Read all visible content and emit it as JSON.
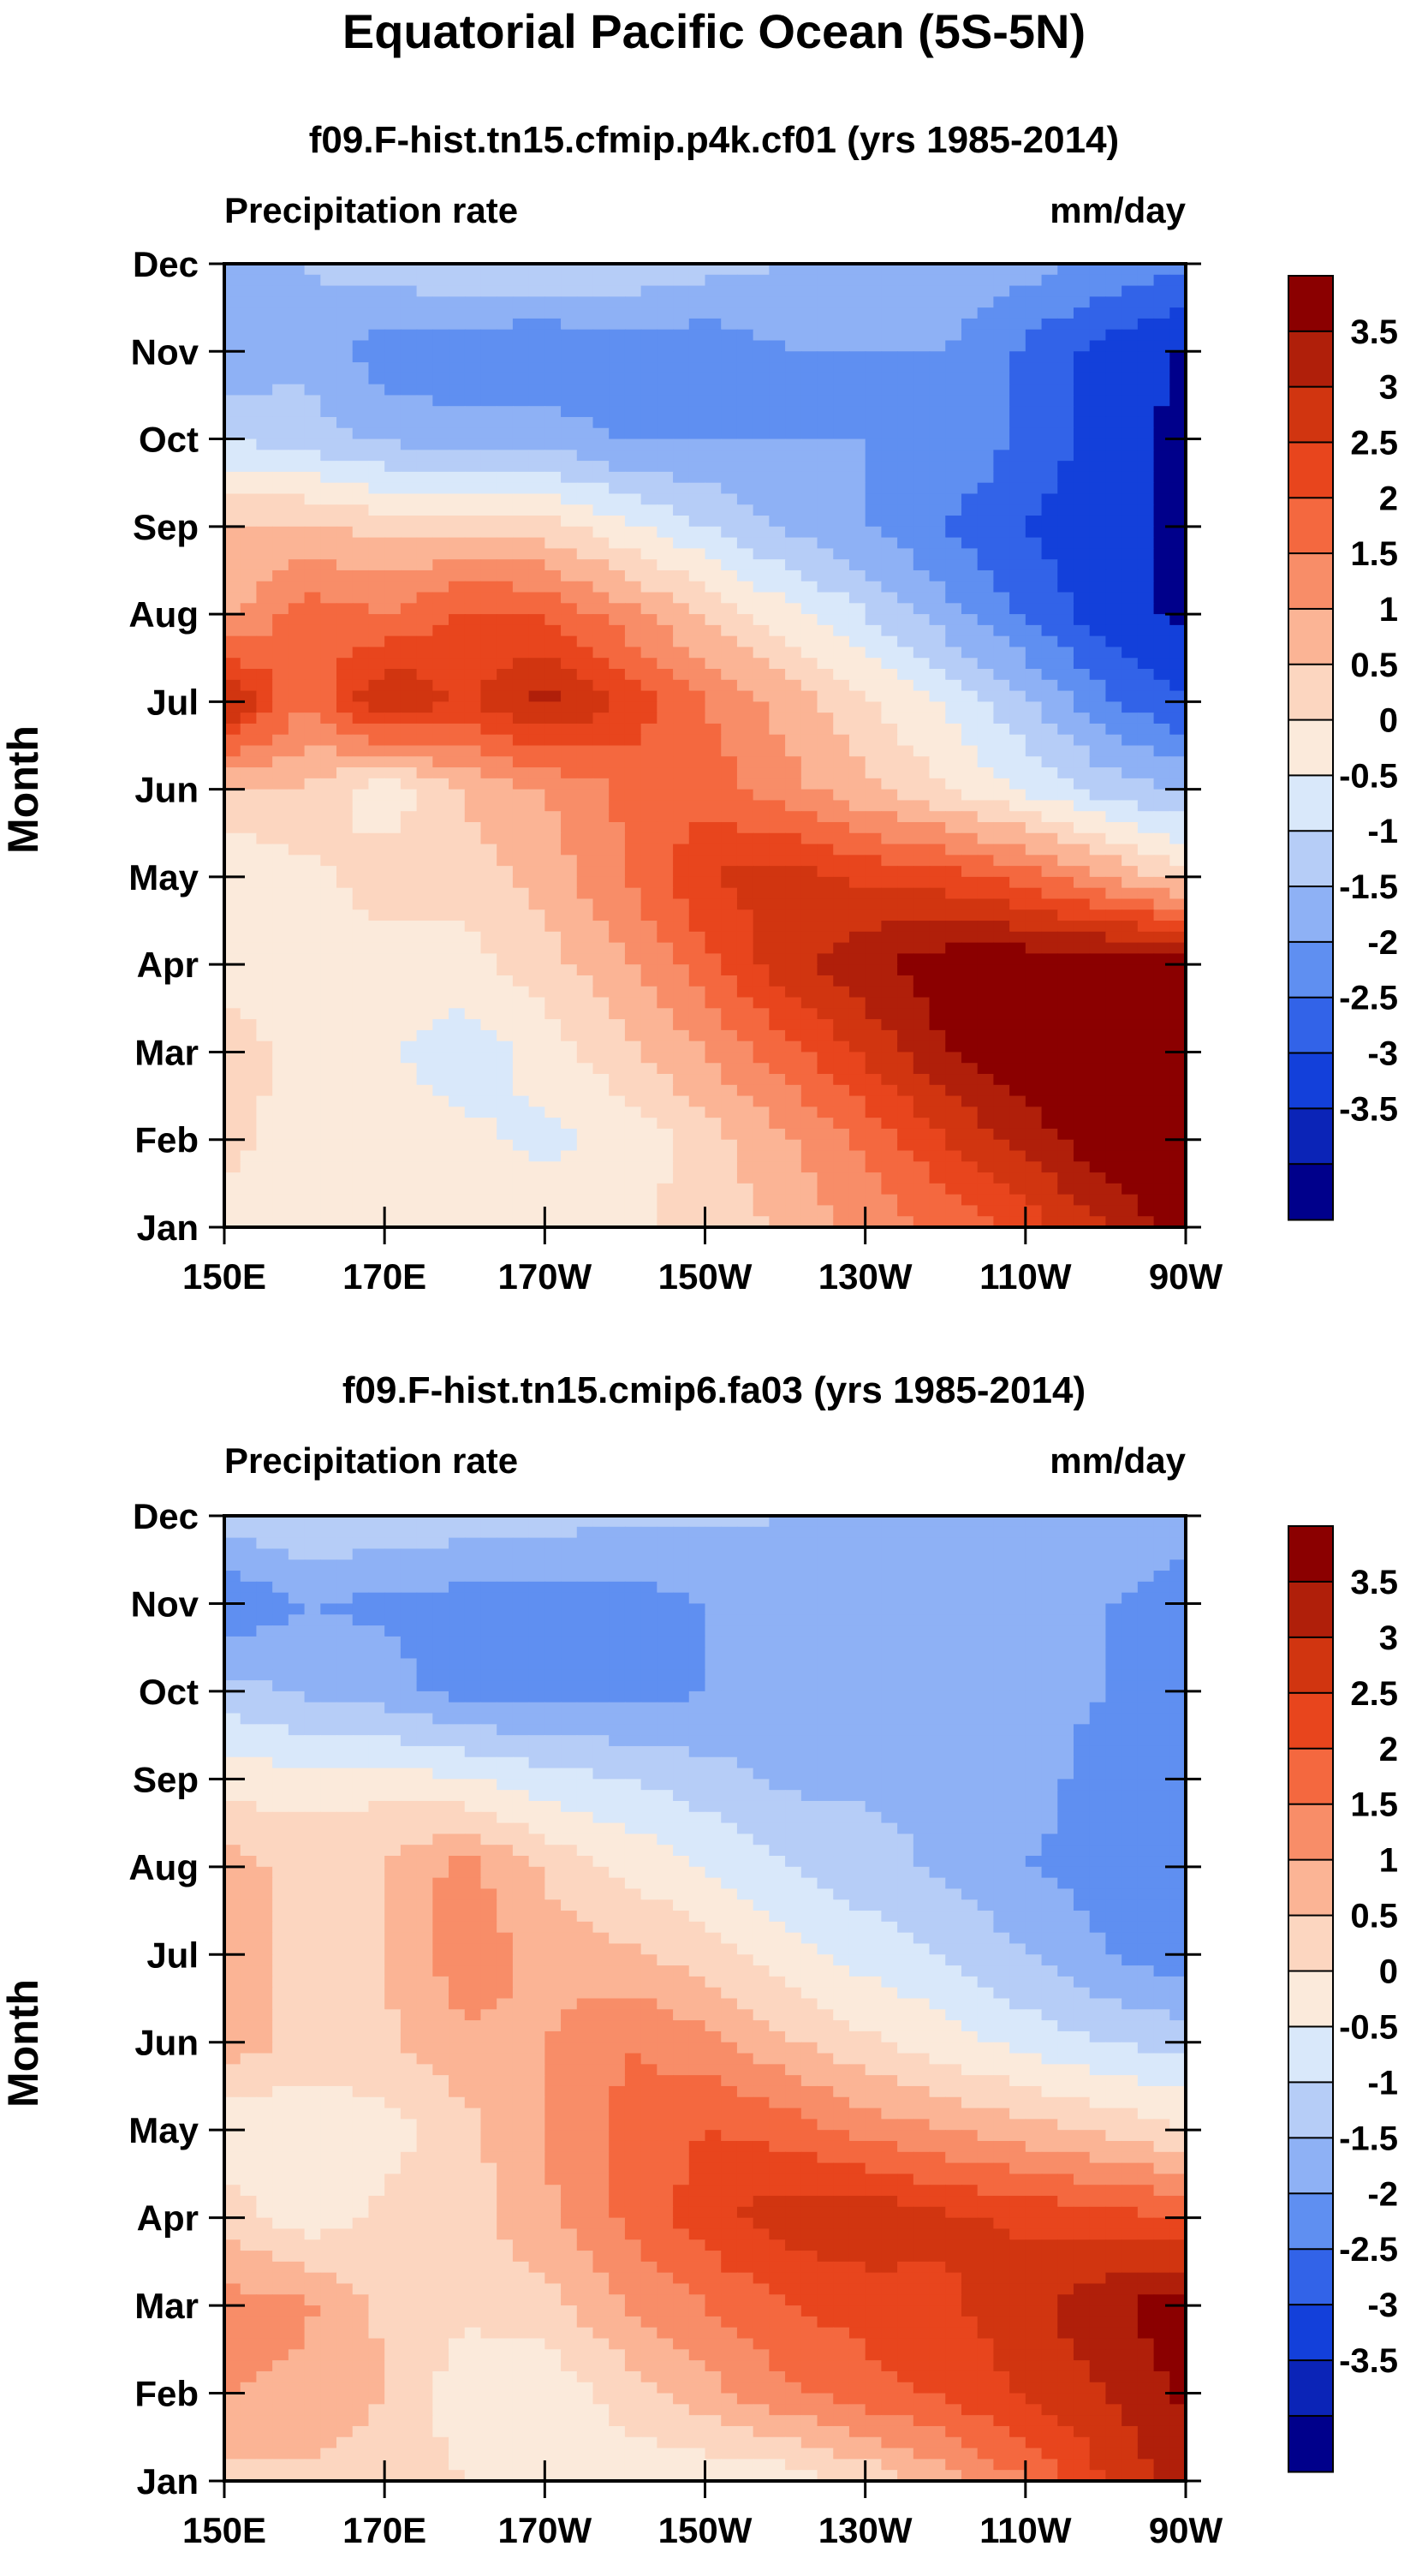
{
  "figure": {
    "title": "Equatorial Pacific Ocean (5S-5N)"
  },
  "chart_data": [
    {
      "type": "heatmap",
      "title": "f09.F-hist.tn15.cfmip.p4k.cf01 (yrs 1985-2014)",
      "variable_label": "Precipitation rate",
      "units_label": "mm/day",
      "ylabel": "Month",
      "xlabel": "",
      "x_ticks": [
        "150E",
        "170E",
        "170W",
        "150W",
        "130W",
        "110W",
        "90W"
      ],
      "y_ticks": [
        "Jan",
        "Feb",
        "Mar",
        "Apr",
        "May",
        "Jun",
        "Jul",
        "Aug",
        "Sep",
        "Oct",
        "Nov",
        "Dec"
      ],
      "colorbar_labels": [
        "3.5",
        "3",
        "2.5",
        "2",
        "1.5",
        "1",
        "0.5",
        "0",
        "-0.5",
        "-1",
        "-1.5",
        "-2",
        "-2.5",
        "-3",
        "-3.5"
      ],
      "colorbar_colors": [
        "#8b0000",
        "#b01f0a",
        "#d13510",
        "#e8451d",
        "#f4683f",
        "#f88d68",
        "#fbb495",
        "#fcd6c0",
        "#fbeadb",
        "#d9e8fa",
        "#b6cdf7",
        "#8eb1f5",
        "#5f8ff1",
        "#3263e8",
        "#1340da",
        "#0b24b7",
        "#00008b"
      ],
      "x_lon": [
        150,
        160,
        170,
        180,
        190,
        200,
        210,
        220,
        230,
        240,
        250,
        260,
        270
      ],
      "months": [
        "Jan",
        "Feb",
        "Mar",
        "Apr",
        "May",
        "Jun",
        "Jul",
        "Aug",
        "Sep",
        "Oct",
        "Nov",
        "Dec"
      ],
      "anomaly": [
        [
          -0.3,
          -0.2,
          -0.1,
          -0.2,
          -0.2,
          -0.1,
          0.2,
          0.6,
          1.2,
          1.6,
          2.2,
          3.0,
          3.9
        ],
        [
          0.2,
          -0.3,
          -0.2,
          -0.4,
          -0.6,
          -0.4,
          0.3,
          0.9,
          1.6,
          2.5,
          3.2,
          3.9,
          3.9
        ],
        [
          0.3,
          -0.2,
          -0.4,
          -0.8,
          -0.3,
          0.4,
          1.0,
          1.8,
          2.6,
          3.5,
          3.9,
          3.9,
          3.9
        ],
        [
          -0.2,
          -0.3,
          -0.3,
          -0.2,
          0.3,
          0.9,
          1.8,
          2.8,
          3.4,
          3.8,
          3.9,
          3.9,
          3.8
        ],
        [
          -0.4,
          -0.2,
          0.3,
          0.2,
          0.7,
          1.5,
          2.5,
          2.7,
          2.4,
          2.2,
          1.8,
          1.0,
          0.2
        ],
        [
          0.4,
          0.5,
          -0.4,
          0.6,
          1.0,
          1.6,
          1.8,
          1.2,
          0.6,
          0.0,
          -0.6,
          -1.2,
          -1.6
        ],
        [
          3.2,
          1.5,
          3.1,
          2.4,
          3.2,
          2.4,
          1.5,
          0.8,
          0.1,
          -0.6,
          -1.4,
          -2.4,
          -3.0
        ],
        [
          0.8,
          1.8,
          1.5,
          2.1,
          2.0,
          1.2,
          0.4,
          -0.3,
          -1.0,
          -1.8,
          -2.6,
          -3.3,
          -3.6
        ],
        [
          0.5,
          0.6,
          0.3,
          0.4,
          0.2,
          -0.4,
          -1.0,
          -1.6,
          -2.0,
          -2.5,
          -3.0,
          -3.4,
          -3.6
        ],
        [
          -1.0,
          -1.3,
          -1.6,
          -1.8,
          -1.7,
          -2.1,
          -2.0,
          -2.0,
          -2.0,
          -2.0,
          -2.6,
          -3.3,
          -3.6
        ],
        [
          -2.0,
          -1.6,
          -2.3,
          -2.4,
          -2.5,
          -2.2,
          -2.4,
          -2.0,
          -2.0,
          -2.0,
          -2.6,
          -3.2,
          -3.6
        ],
        [
          -1.8,
          -1.5,
          -1.2,
          -1.0,
          -1.0,
          -1.1,
          -1.3,
          -1.5,
          -1.6,
          -1.6,
          -1.8,
          -2.1,
          -2.4
        ]
      ]
    },
    {
      "type": "heatmap",
      "title": "f09.F-hist.tn15.cmip6.fa03 (yrs 1985-2014)",
      "variable_label": "Precipitation rate",
      "units_label": "mm/day",
      "ylabel": "Month",
      "xlabel": "",
      "x_ticks": [
        "150E",
        "170E",
        "170W",
        "150W",
        "130W",
        "110W",
        "90W"
      ],
      "y_ticks": [
        "Jan",
        "Feb",
        "Mar",
        "Apr",
        "May",
        "Jun",
        "Jul",
        "Aug",
        "Sep",
        "Oct",
        "Nov",
        "Dec"
      ],
      "colorbar_labels": [
        "3.5",
        "3",
        "2.5",
        "2",
        "1.5",
        "1",
        "0.5",
        "0",
        "-0.5",
        "-1",
        "-1.5",
        "-2",
        "-2.5",
        "-3",
        "-3.5"
      ],
      "colorbar_colors": [
        "#8b0000",
        "#b01f0a",
        "#d13510",
        "#e8451d",
        "#f4683f",
        "#f88d68",
        "#fbb495",
        "#fcd6c0",
        "#fbeadb",
        "#d9e8fa",
        "#b6cdf7",
        "#8eb1f5",
        "#5f8ff1",
        "#3263e8",
        "#1340da",
        "#0b24b7",
        "#00008b"
      ],
      "x_lon": [
        150,
        160,
        170,
        180,
        190,
        200,
        210,
        220,
        230,
        240,
        250,
        260,
        270
      ],
      "months": [
        "Jan",
        "Feb",
        "Mar",
        "Apr",
        "May",
        "Jun",
        "Jul",
        "Aug",
        "Sep",
        "Oct",
        "Nov",
        "Dec"
      ],
      "anomaly": [
        [
          0.3,
          0.4,
          0.2,
          0.0,
          -0.2,
          -0.3,
          -0.4,
          -0.3,
          0.1,
          0.8,
          1.5,
          2.5,
          3.3
        ],
        [
          1.0,
          0.9,
          0.5,
          -0.3,
          -0.4,
          0.2,
          0.8,
          1.4,
          1.8,
          2.1,
          2.6,
          3.0,
          3.6
        ],
        [
          1.2,
          1.1,
          0.4,
          0.1,
          0.3,
          1.0,
          1.5,
          2.0,
          2.2,
          2.4,
          2.8,
          3.4,
          3.8
        ],
        [
          0.3,
          -0.3,
          0.1,
          0.3,
          0.9,
          1.6,
          2.3,
          2.8,
          2.9,
          2.6,
          2.4,
          2.2,
          2.0
        ],
        [
          -0.5,
          -0.4,
          -0.2,
          0.3,
          1.0,
          1.6,
          2.0,
          1.8,
          1.3,
          1.0,
          0.7,
          0.4,
          0.0
        ],
        [
          0.9,
          0.3,
          0.4,
          0.9,
          1.0,
          1.5,
          1.2,
          0.6,
          0.1,
          -0.3,
          -0.7,
          -1.0,
          -1.2
        ],
        [
          0.8,
          0.3,
          0.5,
          1.3,
          0.8,
          0.6,
          0.2,
          -0.3,
          -0.7,
          -1.0,
          -1.5,
          -2.0,
          -2.3
        ],
        [
          0.7,
          0.4,
          0.5,
          1.2,
          0.4,
          -0.1,
          -0.5,
          -1.0,
          -1.3,
          -1.6,
          -2.0,
          -2.2,
          -2.5
        ],
        [
          -0.2,
          -0.3,
          -0.2,
          -0.5,
          -0.8,
          -1.0,
          -1.3,
          -1.6,
          -1.6,
          -1.6,
          -1.8,
          -2.2,
          -2.5
        ],
        [
          -1.3,
          -1.6,
          -1.8,
          -2.2,
          -2.2,
          -2.2,
          -2.0,
          -1.6,
          -1.6,
          -1.6,
          -1.8,
          -2.0,
          -2.2
        ],
        [
          -2.4,
          -2.0,
          -2.1,
          -2.2,
          -2.2,
          -2.2,
          -2.0,
          -1.7,
          -1.6,
          -1.6,
          -1.8,
          -2.0,
          -2.2
        ],
        [
          -1.3,
          -1.0,
          -1.1,
          -1.2,
          -1.3,
          -1.4,
          -1.4,
          -1.5,
          -1.5,
          -1.5,
          -1.5,
          -1.6,
          -1.8
        ]
      ]
    }
  ]
}
